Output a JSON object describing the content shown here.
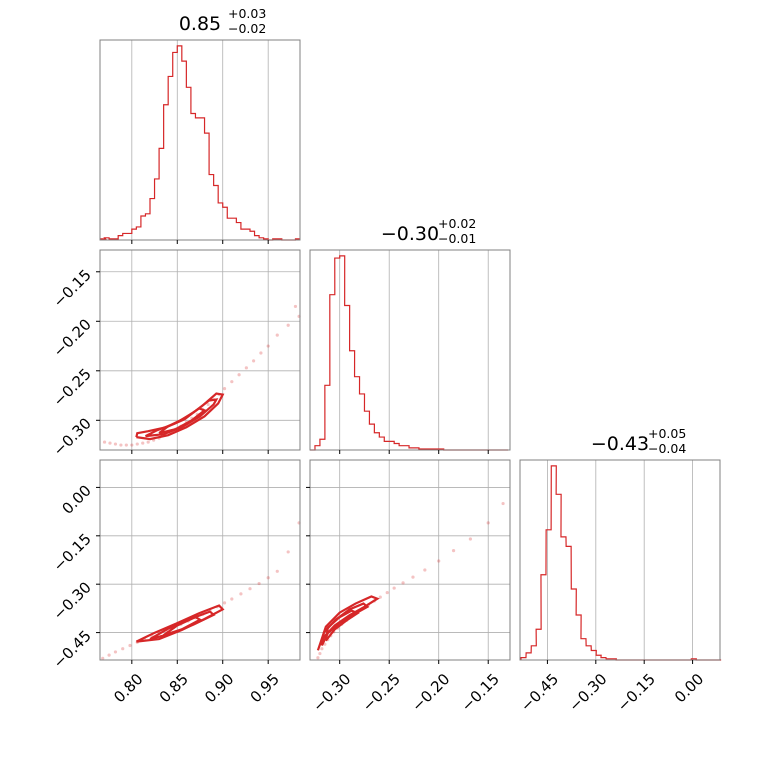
{
  "chart_data": {
    "type": "corner",
    "color": "#d62728",
    "grid": true,
    "parameters": [
      {
        "title_value": "0.85",
        "title_plus": "+0.03",
        "title_minus": "−0.02",
        "range": [
          0.765,
          0.985
        ],
        "ticks": [
          0.8,
          0.85,
          0.9,
          0.95
        ],
        "tick_labels": [
          "0.80",
          "0.85",
          "0.90",
          "0.95"
        ],
        "hist": {
          "x": [
            0.766,
            0.77,
            0.775,
            0.78,
            0.785,
            0.79,
            0.795,
            0.8,
            0.805,
            0.81,
            0.815,
            0.82,
            0.825,
            0.83,
            0.835,
            0.84,
            0.845,
            0.85,
            0.855,
            0.86,
            0.865,
            0.87,
            0.875,
            0.88,
            0.885,
            0.89,
            0.895,
            0.9,
            0.905,
            0.91,
            0.915,
            0.92,
            0.925,
            0.93,
            0.935,
            0.94,
            0.945,
            0.95,
            0.955,
            0.96,
            0.965,
            0.97,
            0.975,
            0.98
          ],
          "values": [
            0.5,
            1,
            0.5,
            0.5,
            2,
            3,
            3,
            5,
            6,
            11,
            12,
            19,
            28,
            42,
            62,
            75,
            86,
            89,
            82,
            70,
            58,
            56,
            56,
            49,
            30,
            25,
            17,
            15,
            10,
            10,
            8,
            5,
            5,
            4,
            2,
            1,
            0.5,
            0,
            0.5,
            0.5,
            0,
            0,
            0,
            0.5
          ]
        }
      },
      {
        "title_value": "−0.30",
        "title_plus": "+0.02",
        "title_minus": "−0.01",
        "range": [
          -0.33,
          -0.128
        ],
        "ticks": [
          -0.3,
          -0.25,
          -0.2,
          -0.15
        ],
        "tick_labels": [
          "−0.30",
          "−0.25",
          "−0.20",
          "−0.15"
        ],
        "ticks_y": [
          -0.3,
          -0.25,
          -0.2,
          -0.15
        ],
        "tick_labels_y": [
          "−0.30",
          "−0.25",
          "−0.20",
          "−0.15"
        ],
        "hist": {
          "x": [
            -0.33,
            -0.325,
            -0.32,
            -0.315,
            -0.31,
            -0.305,
            -0.3,
            -0.295,
            -0.29,
            -0.285,
            -0.28,
            -0.275,
            -0.27,
            -0.265,
            -0.26,
            -0.255,
            -0.25,
            -0.245,
            -0.24,
            -0.235,
            -0.23,
            -0.225,
            -0.22,
            -0.215,
            -0.21,
            -0.205,
            -0.2,
            -0.195,
            -0.19,
            -0.185,
            -0.18,
            -0.175,
            -0.17,
            -0.165,
            -0.16,
            -0.155,
            -0.15,
            -0.145,
            -0.14,
            -0.135
          ],
          "values": [
            0,
            2,
            5,
            30,
            72,
            89,
            90,
            67,
            46,
            34,
            26,
            18,
            12,
            8,
            6,
            4,
            4,
            3,
            2,
            2,
            1,
            1,
            0.5,
            0.5,
            0.5,
            0.5,
            0.5,
            0,
            0,
            0,
            0,
            0,
            0,
            0,
            0,
            0,
            0,
            0,
            0,
            0
          ]
        }
      },
      {
        "title_value": "−0.43",
        "title_plus": "+0.05",
        "title_minus": "−0.04",
        "range": [
          -0.535,
          0.085
        ],
        "ticks": [
          -0.45,
          -0.3,
          -0.15,
          0.0
        ],
        "tick_labels": [
          "−0.45",
          "−0.30",
          "−0.15",
          "0.00"
        ],
        "ticks_y": [
          -0.45,
          -0.3,
          -0.15,
          0.0
        ],
        "tick_labels_y": [
          "−0.45",
          "−0.30",
          "−0.15",
          "0.00"
        ],
        "hist": {
          "x": [
            -0.532,
            -0.516,
            -0.5,
            -0.485,
            -0.47,
            -0.454,
            -0.438,
            -0.423,
            -0.408,
            -0.392,
            -0.376,
            -0.361,
            -0.346,
            -0.33,
            -0.314,
            -0.299,
            -0.284,
            -0.268,
            -0.252,
            -0.237,
            -0.222,
            -0.206,
            -0.19,
            -0.175,
            -0.16,
            -0.144,
            -0.128,
            -0.113,
            -0.098,
            -0.082,
            -0.066,
            -0.051,
            -0.036,
            -0.02,
            -0.004,
            0.011,
            0.026,
            0.042,
            0.058,
            0.073
          ],
          "values": [
            1,
            3,
            6,
            13,
            36,
            55,
            82,
            70,
            52,
            48,
            30,
            19,
            9,
            6,
            4,
            2,
            1,
            0.5,
            0.5,
            0,
            0,
            0,
            0,
            0,
            0,
            0,
            0,
            0,
            0,
            0,
            0,
            0,
            0,
            0,
            0.5,
            0,
            0,
            0,
            0,
            0
          ]
        }
      }
    ],
    "scatter": [
      {
        "row": 1,
        "col": 0,
        "x": [
          0.77,
          0.776,
          0.782,
          0.788,
          0.794,
          0.8,
          0.806,
          0.812,
          0.818,
          0.824,
          0.83,
          0.836,
          0.842,
          0.848,
          0.854,
          0.86,
          0.866,
          0.872,
          0.878,
          0.884,
          0.89,
          0.896,
          0.902,
          0.91,
          0.918,
          0.926,
          0.934,
          0.942,
          0.95,
          0.96,
          0.972,
          0.984,
          0.98
        ],
        "y": [
          -0.322,
          -0.323,
          -0.324,
          -0.325,
          -0.325,
          -0.325,
          -0.324,
          -0.323,
          -0.322,
          -0.32,
          -0.318,
          -0.315,
          -0.312,
          -0.309,
          -0.306,
          -0.302,
          -0.298,
          -0.294,
          -0.289,
          -0.284,
          -0.279,
          -0.274,
          -0.268,
          -0.261,
          -0.254,
          -0.247,
          -0.24,
          -0.232,
          -0.225,
          -0.214,
          -0.204,
          -0.195,
          -0.185
        ]
      },
      {
        "row": 2,
        "col": 0,
        "x": [
          0.768,
          0.775,
          0.782,
          0.79,
          0.798,
          0.806,
          0.814,
          0.822,
          0.83,
          0.838,
          0.846,
          0.854,
          0.862,
          0.87,
          0.878,
          0.886,
          0.894,
          0.902,
          0.91,
          0.92,
          0.93,
          0.94,
          0.95,
          0.96,
          0.972,
          0.984
        ],
        "y": [
          -0.53,
          -0.52,
          -0.51,
          -0.5,
          -0.49,
          -0.48,
          -0.47,
          -0.46,
          -0.452,
          -0.443,
          -0.434,
          -0.424,
          -0.414,
          -0.404,
          -0.393,
          -0.382,
          -0.37,
          -0.358,
          -0.346,
          -0.33,
          -0.314,
          -0.298,
          -0.28,
          -0.26,
          -0.2,
          -0.11
        ]
      },
      {
        "row": 2,
        "col": 1,
        "x": [
          -0.322,
          -0.32,
          -0.318,
          -0.315,
          -0.312,
          -0.309,
          -0.306,
          -0.302,
          -0.298,
          -0.293,
          -0.288,
          -0.283,
          -0.277,
          -0.271,
          -0.265,
          -0.259,
          -0.252,
          -0.245,
          -0.236,
          -0.226,
          -0.214,
          -0.2,
          -0.185,
          -0.168,
          -0.15,
          -0.135
        ],
        "y": [
          -0.528,
          -0.515,
          -0.5,
          -0.486,
          -0.472,
          -0.46,
          -0.448,
          -0.436,
          -0.424,
          -0.412,
          -0.4,
          -0.388,
          -0.376,
          -0.364,
          -0.352,
          -0.34,
          -0.326,
          -0.312,
          -0.296,
          -0.278,
          -0.256,
          -0.228,
          -0.196,
          -0.16,
          -0.11,
          -0.05
        ]
      }
    ],
    "contours": [
      {
        "row": 1,
        "col": 0,
        "levels": [
          {
            "x": [
              0.805,
              0.82,
              0.84,
              0.86,
              0.88,
              0.895,
              0.9,
              0.893,
              0.878,
              0.858,
              0.838,
              0.818,
              0.806,
              0.805
            ],
            "y": [
              -0.317,
              -0.319,
              -0.315,
              -0.307,
              -0.296,
              -0.283,
              -0.274,
              -0.273,
              -0.285,
              -0.299,
              -0.307,
              -0.311,
              -0.313,
              -0.317
            ]
          },
          {
            "x": [
              0.815,
              0.835,
              0.855,
              0.875,
              0.89,
              0.893,
              0.885,
              0.868,
              0.848,
              0.828,
              0.815
            ],
            "y": [
              -0.316,
              -0.314,
              -0.307,
              -0.296,
              -0.284,
              -0.279,
              -0.28,
              -0.292,
              -0.303,
              -0.31,
              -0.316
            ]
          },
          {
            "x": [
              0.83,
              0.848,
              0.866,
              0.88,
              0.874,
              0.858,
              0.84,
              0.83
            ],
            "y": [
              -0.313,
              -0.309,
              -0.3,
              -0.29,
              -0.288,
              -0.298,
              -0.306,
              -0.313
            ]
          }
        ]
      },
      {
        "row": 2,
        "col": 0,
        "levels": [
          {
            "x": [
              0.805,
              0.83,
              0.855,
              0.88,
              0.9,
              0.896,
              0.874,
              0.849,
              0.824,
              0.805
            ],
            "y": [
              -0.478,
              -0.47,
              -0.442,
              -0.408,
              -0.378,
              -0.366,
              -0.39,
              -0.422,
              -0.452,
              -0.478
            ]
          },
          {
            "x": [
              0.82,
              0.845,
              0.868,
              0.89,
              0.886,
              0.862,
              0.84,
              0.82
            ],
            "y": [
              -0.47,
              -0.452,
              -0.425,
              -0.395,
              -0.385,
              -0.41,
              -0.438,
              -0.47
            ]
          },
          {
            "x": [
              0.835,
              0.855,
              0.875,
              0.87,
              0.85,
              0.835
            ],
            "y": [
              -0.458,
              -0.44,
              -0.41,
              -0.402,
              -0.428,
              -0.458
            ]
          }
        ]
      },
      {
        "row": 2,
        "col": 1,
        "levels": [
          {
            "x": [
              -0.322,
              -0.318,
              -0.305,
              -0.29,
              -0.275,
              -0.262,
              -0.268,
              -0.284,
              -0.3,
              -0.314,
              -0.322
            ],
            "y": [
              -0.505,
              -0.47,
              -0.428,
              -0.396,
              -0.37,
              -0.345,
              -0.338,
              -0.36,
              -0.388,
              -0.432,
              -0.505
            ]
          },
          {
            "x": [
              -0.318,
              -0.312,
              -0.3,
              -0.286,
              -0.272,
              -0.276,
              -0.29,
              -0.304,
              -0.316,
              -0.318
            ],
            "y": [
              -0.49,
              -0.452,
              -0.42,
              -0.394,
              -0.37,
              -0.36,
              -0.378,
              -0.41,
              -0.45,
              -0.49
            ]
          },
          {
            "x": [
              -0.314,
              -0.305,
              -0.292,
              -0.282,
              -0.288,
              -0.3,
              -0.312,
              -0.314
            ],
            "y": [
              -0.475,
              -0.44,
              -0.41,
              -0.39,
              -0.382,
              -0.402,
              -0.435,
              -0.475
            ]
          }
        ]
      }
    ]
  }
}
